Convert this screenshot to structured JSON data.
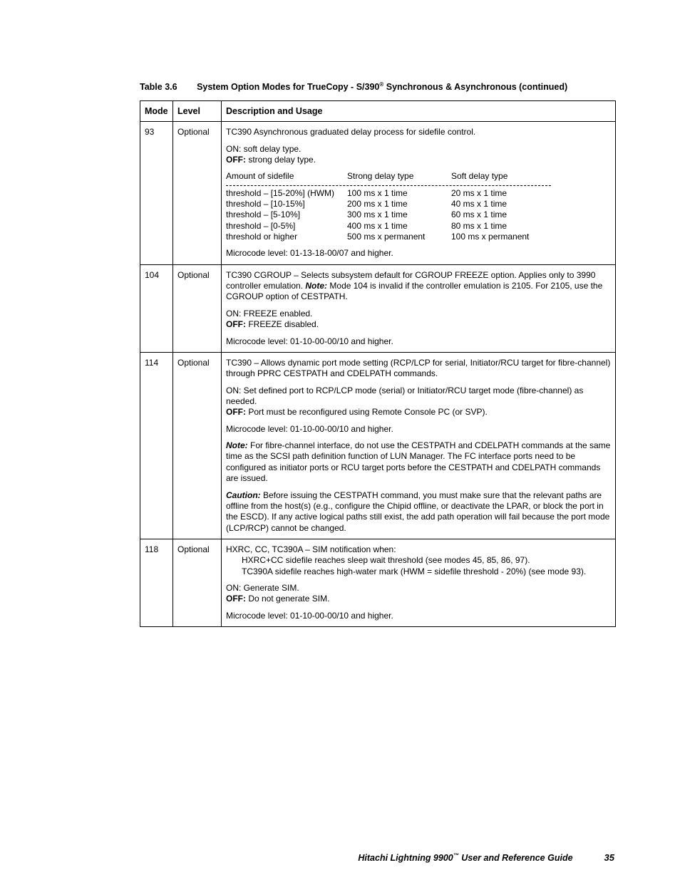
{
  "caption": {
    "label": "Table 3.6",
    "title_pre": "System Option Modes for TrueCopy - S/390",
    "title_post": " Synchronous & Asynchronous (continued)",
    "reg": "®"
  },
  "headers": {
    "mode": "Mode",
    "level": "Level",
    "desc": "Description and Usage"
  },
  "rows": {
    "r93": {
      "mode": "93",
      "level": "Optional",
      "p1": "TC390 Asynchronous graduated delay process for sidefile control.",
      "on": "ON:  soft delay type.",
      "off_b": "OFF:",
      "off_t": "  strong delay type.",
      "subhdr": {
        "a": "Amount of sidefile",
        "b": "Strong delay type",
        "c": "Soft delay type"
      },
      "l1a": "threshold – [15-20%] (HWM)",
      "l1b": "100 ms x 1 time",
      "l1c": "20 ms x 1 time",
      "l2a": "threshold – [10-15%]",
      "l2b": "200 ms x 1 time",
      "l2c": "40 ms x 1 time",
      "l3a": "threshold – [5-10%]",
      "l3b": "300 ms x 1 time",
      "l3c": "60 ms x 1 time",
      "l4a": "threshold – [0-5%]",
      "l4b": "400 ms x 1 time",
      "l4c": "80 ms x 1 time",
      "l5a": "threshold or higher",
      "l5b": "500 ms x permanent",
      "l5c": "100 ms x permanent",
      "mc": "Microcode level:  01-13-18-00/07 and higher."
    },
    "r104": {
      "mode": "104",
      "level": "Optional",
      "p1a": "TC390 CGROUP – Selects subsystem default for CGROUP FREEZE option. Applies only to 3990 controller emulation. ",
      "note_b": "Note:",
      "note_t": "  Mode 104 is invalid if the controller emulation is 2105. For 2105, use the CGROUP option of CESTPATH.",
      "on": "ON:  FREEZE enabled.",
      "off_b": "OFF:",
      "off_t": "  FREEZE disabled.",
      "mc": "Microcode level:  01-10-00-00/10 and higher."
    },
    "r114": {
      "mode": "114",
      "level": "Optional",
      "p1": "TC390 – Allows dynamic port mode setting (RCP/LCP for serial, Initiator/RCU target for fibre-channel) through PPRC CESTPATH and CDELPATH commands.",
      "on": "ON:  Set defined port to RCP/LCP mode (serial) or Initiator/RCU target mode (fibre-channel) as needed.",
      "off_b": "OFF:",
      "off_t": "  Port must be reconfigured using Remote Console PC (or SVP).",
      "mc": "Microcode level:  01-10-00-00/10 and higher.",
      "note_b": "Note:",
      "note_t": "  For fibre-channel interface, do not use the CESTPATH and CDELPATH commands at the same time as the SCSI path definition function of LUN Manager. The FC interface ports need to be configured as initiator ports or RCU target ports before the CESTPATH and CDELPATH commands are issued.",
      "cau_b": "Caution:",
      "cau_t": "  Before issuing the CESTPATH command, you must make sure that the relevant paths are offline from the host(s) (e.g., configure the Chipid offline, or deactivate the LPAR, or block the port in the ESCD). If any active logical paths still exist, the add path operation will fail because the port mode (LCP/RCP) cannot be changed."
    },
    "r118": {
      "mode": "118",
      "level": "Optional",
      "p1": "HXRC, CC, TC390A – SIM notification when:",
      "s1": "HXRC+CC sidefile reaches sleep wait threshold (see modes 45, 85, 86, 97).",
      "s2": "TC390A sidefile reaches high-water mark (HWM = sidefile threshold - 20%) (see mode 93).",
      "on": "ON:  Generate SIM.",
      "off_b": "OFF:",
      "off_t": "  Do not generate SIM.",
      "mc": "Microcode level:  01-10-00-00/10 and higher."
    }
  },
  "footer": {
    "title_pre": "Hitachi Lightning 9900",
    "tm": "™",
    "title_post": " User and Reference Guide",
    "page": "35"
  }
}
